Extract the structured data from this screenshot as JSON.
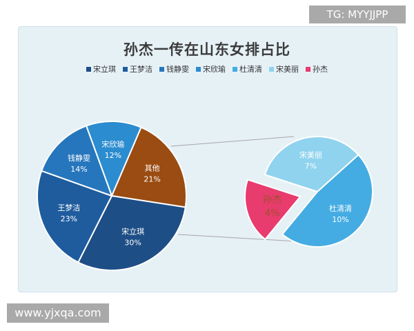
{
  "watermark_top": "TG: MYYJJPP",
  "watermark_bottom": "www.yjxqa.com",
  "chart_data": {
    "type": "pie",
    "title": "孙杰一传在山东女排占比",
    "legend_position": "top",
    "legend": [
      "宋立琪",
      "王梦洁",
      "钱静雯",
      "宋欣瑜",
      "杜清清",
      "宋美丽",
      "孙杰"
    ],
    "main_pie": [
      {
        "label": "宋立琪",
        "pct_label": "30%",
        "value": 30,
        "color": "#1e4e86"
      },
      {
        "label": "王梦洁",
        "pct_label": "23%",
        "value": 23,
        "color": "#1f5c9e"
      },
      {
        "label": "钱静雯",
        "pct_label": "14%",
        "value": 14,
        "color": "#2676bd"
      },
      {
        "label": "宋欣瑜",
        "pct_label": "12%",
        "value": 12,
        "color": "#2b8ccf"
      },
      {
        "label": "其他",
        "pct_label": "21%",
        "value": 21,
        "color": "#9a4c12"
      }
    ],
    "sub_pie": [
      {
        "label": "宋美丽",
        "pct_label": "7%",
        "value": 7,
        "color": "#8fd3ee"
      },
      {
        "label": "杜清清",
        "pct_label": "10%",
        "value": 10,
        "color": "#44ace2"
      },
      {
        "label": "孙杰",
        "pct_label": "4%",
        "value": 4,
        "color": "#e83b6e"
      }
    ],
    "legend_colors": [
      "#1e4e86",
      "#1f5c9e",
      "#2676bd",
      "#2b8ccf",
      "#44ace2",
      "#8fd3ee",
      "#e83b6e"
    ]
  }
}
